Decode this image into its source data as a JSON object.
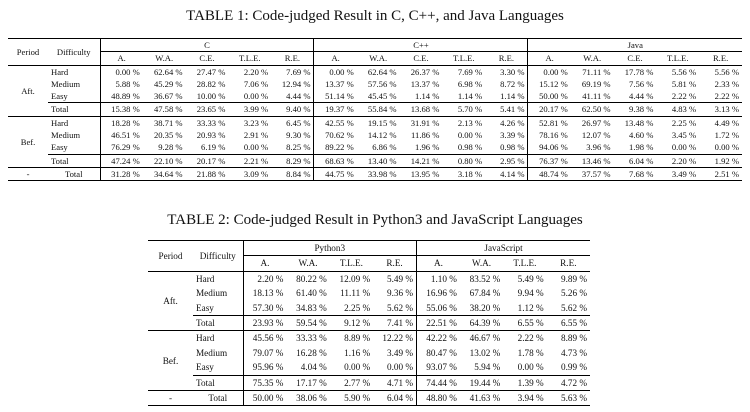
{
  "tables": [
    {
      "title": "TABLE 1: Code-judged Result in C, C++, and Java Languages",
      "header": [
        "Period",
        "Difficulty"
      ],
      "groups": [
        {
          "name": "C",
          "columns": [
            "A.",
            "W.A.",
            "C.E.",
            "T.L.E.",
            "R.E."
          ]
        },
        {
          "name": "C++",
          "columns": [
            "A.",
            "W.A.",
            "C.E.",
            "T.L.E.",
            "R.E."
          ]
        },
        {
          "name": "Java",
          "columns": [
            "A.",
            "W.A.",
            "C.E.",
            "T.L.E.",
            "R.E."
          ]
        }
      ],
      "sections": [
        {
          "period": "Aft.",
          "rows": [
            {
              "difficulty": "Hard",
              "cells": [
                "0.00 %",
                "62.64 %",
                "27.47 %",
                "2.20 %",
                "7.69 %",
                "0.00 %",
                "62.64 %",
                "26.37 %",
                "7.69 %",
                "3.30 %",
                "0.00 %",
                "71.11 %",
                "17.78 %",
                "5.56 %",
                "5.56 %"
              ]
            },
            {
              "difficulty": "Medium",
              "cells": [
                "5.88 %",
                "45.29 %",
                "28.82 %",
                "7.06 %",
                "12.94 %",
                "13.37 %",
                "57.56 %",
                "13.37 %",
                "6.98 %",
                "8.72 %",
                "15.12 %",
                "69.19 %",
                "7.56 %",
                "5.81 %",
                "2.33 %"
              ]
            },
            {
              "difficulty": "Easy",
              "cells": [
                "48.89 %",
                "36.67 %",
                "10.00 %",
                "0.00 %",
                "4.44 %",
                "51.14 %",
                "45.45 %",
                "1.14 %",
                "1.14 %",
                "1.14 %",
                "50.00 %",
                "41.11 %",
                "4.44 %",
                "2.22 %",
                "2.22 %"
              ]
            },
            {
              "difficulty": "Total",
              "cells": [
                "15.38 %",
                "47.58 %",
                "23.65 %",
                "3.99 %",
                "9.40 %",
                "19.37 %",
                "55.84 %",
                "13.68 %",
                "5.70 %",
                "5.41 %",
                "20.17 %",
                "62.50 %",
                "9.38 %",
                "4.83 %",
                "3.13 %"
              ]
            }
          ]
        },
        {
          "period": "Bef.",
          "rows": [
            {
              "difficulty": "Hard",
              "cells": [
                "18.28 %",
                "38.71 %",
                "33.33 %",
                "3.23 %",
                "6.45 %",
                "42.55 %",
                "19.15 %",
                "31.91 %",
                "2.13 %",
                "4.26 %",
                "52.81 %",
                "26.97 %",
                "13.48 %",
                "2.25 %",
                "4.49 %"
              ]
            },
            {
              "difficulty": "Medium",
              "cells": [
                "46.51 %",
                "20.35 %",
                "20.93 %",
                "2.91 %",
                "9.30 %",
                "70.62 %",
                "14.12 %",
                "11.86 %",
                "0.00 %",
                "3.39 %",
                "78.16 %",
                "12.07 %",
                "4.60 %",
                "3.45 %",
                "1.72 %"
              ]
            },
            {
              "difficulty": "Easy",
              "cells": [
                "76.29 %",
                "9.28 %",
                "6.19 %",
                "0.00 %",
                "8.25 %",
                "89.22 %",
                "6.86 %",
                "1.96 %",
                "0.98 %",
                "0.98 %",
                "94.06 %",
                "3.96 %",
                "1.98 %",
                "0.00 %",
                "0.00 %"
              ]
            },
            {
              "difficulty": "Total",
              "cells": [
                "47.24 %",
                "22.10 %",
                "20.17 %",
                "2.21 %",
                "8.29 %",
                "68.63 %",
                "13.40 %",
                "14.21 %",
                "0.80 %",
                "2.95 %",
                "76.37 %",
                "13.46 %",
                "6.04 %",
                "2.20 %",
                "1.92 %"
              ]
            }
          ]
        },
        {
          "period": "-",
          "rows": [
            {
              "difficulty": "Total",
              "cells": [
                "31.28 %",
                "34.64 %",
                "21.88 %",
                "3.09 %",
                "8.84 %",
                "44.75 %",
                "33.98 %",
                "13.95 %",
                "3.18 %",
                "4.14 %",
                "48.74 %",
                "37.57 %",
                "7.68 %",
                "3.49 %",
                "2.51 %"
              ]
            }
          ]
        }
      ]
    },
    {
      "title": "TABLE 2: Code-judged Result in Python3 and JavaScript Languages",
      "header": [
        "Period",
        "Difficulty"
      ],
      "groups": [
        {
          "name": "Python3",
          "columns": [
            "A.",
            "W.A.",
            "T.L.E.",
            "R.E."
          ]
        },
        {
          "name": "JavaScript",
          "columns": [
            "A.",
            "W.A.",
            "T.L.E.",
            "R.E."
          ]
        }
      ],
      "sections": [
        {
          "period": "Aft.",
          "rows": [
            {
              "difficulty": "Hard",
              "cells": [
                "2.20 %",
                "80.22 %",
                "12.09 %",
                "5.49 %",
                "1.10 %",
                "83.52 %",
                "5.49 %",
                "9.89 %"
              ]
            },
            {
              "difficulty": "Medium",
              "cells": [
                "18.13 %",
                "61.40 %",
                "11.11 %",
                "9.36 %",
                "16.96 %",
                "67.84 %",
                "9.94 %",
                "5.26 %"
              ]
            },
            {
              "difficulty": "Easy",
              "cells": [
                "57.30 %",
                "34.83 %",
                "2.25 %",
                "5.62 %",
                "55.06 %",
                "38.20 %",
                "1.12 %",
                "5.62 %"
              ]
            },
            {
              "difficulty": "Total",
              "cells": [
                "23.93 %",
                "59.54 %",
                "9.12 %",
                "7.41 %",
                "22.51 %",
                "64.39 %",
                "6.55 %",
                "6.55 %"
              ]
            }
          ]
        },
        {
          "period": "Bef.",
          "rows": [
            {
              "difficulty": "Hard",
              "cells": [
                "45.56 %",
                "33.33 %",
                "8.89 %",
                "12.22 %",
                "42.22 %",
                "46.67 %",
                "2.22 %",
                "8.89 %"
              ]
            },
            {
              "difficulty": "Medium",
              "cells": [
                "79.07 %",
                "16.28 %",
                "1.16 %",
                "3.49 %",
                "80.47 %",
                "13.02 %",
                "1.78 %",
                "4.73 %"
              ]
            },
            {
              "difficulty": "Easy",
              "cells": [
                "95.96 %",
                "4.04 %",
                "0.00 %",
                "0.00 %",
                "93.07 %",
                "5.94 %",
                "0.00 %",
                "0.99 %"
              ]
            },
            {
              "difficulty": "Total",
              "cells": [
                "75.35 %",
                "17.17 %",
                "2.77 %",
                "4.71 %",
                "74.44 %",
                "19.44 %",
                "1.39 %",
                "4.72 %"
              ]
            }
          ]
        },
        {
          "period": "-",
          "rows": [
            {
              "difficulty": "Total",
              "cells": [
                "50.00 %",
                "38.06 %",
                "5.90 %",
                "6.04 %",
                "48.80 %",
                "41.63 %",
                "3.94 %",
                "5.63 %"
              ]
            }
          ]
        }
      ]
    }
  ]
}
